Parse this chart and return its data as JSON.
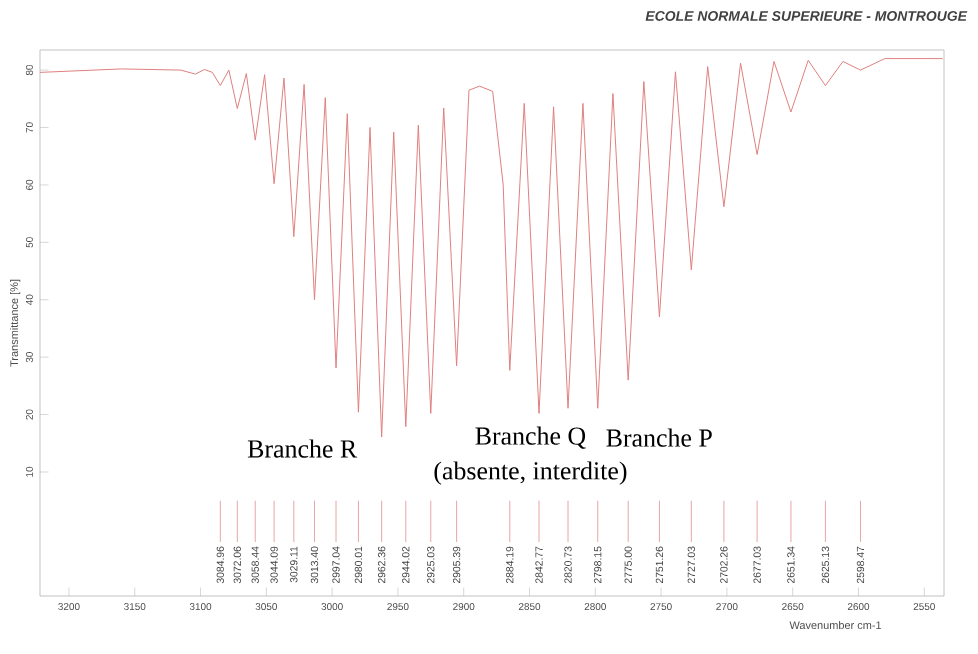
{
  "chart_data": {
    "type": "line",
    "title": "ECOLE NORMALE SUPERIEURE - MONTROUGE",
    "xlabel": "Wavenumber cm-1",
    "ylabel": "Transmittance [%]",
    "color": "#e08080",
    "x": [
      3222,
      3160,
      3115,
      3104,
      3097,
      3091,
      3084.96,
      3078.5,
      3072.06,
      3065.2,
      3058.44,
      3051.3,
      3044.09,
      3036.6,
      3029.11,
      3021.3,
      3013.4,
      3005.2,
      2997.04,
      2988.5,
      2980.01,
      2971.2,
      2962.36,
      2953.2,
      2944.02,
      2934.5,
      2925.03,
      2915.2,
      2905.39,
      2896,
      2888,
      2878,
      2870,
      2865,
      2854,
      2842.77,
      2831.7,
      2820.73,
      2809.4,
      2798.15,
      2786.6,
      2775.0,
      2763.1,
      2751.26,
      2739.1,
      2727.03,
      2714.6,
      2702.26,
      2689.6,
      2677.03,
      2664.2,
      2651.34,
      2638.2,
      2625.13,
      2611.8,
      2598.47,
      2580,
      2536
    ],
    "values": [
      79.6,
      80.2,
      80.0,
      79.3,
      80.1,
      79.6,
      77.3,
      80.0,
      73.3,
      79.4,
      67.8,
      79.2,
      60.2,
      78.6,
      51.0,
      77.5,
      40.0,
      75.2,
      28.1,
      72.4,
      20.4,
      70.0,
      16.1,
      69.2,
      17.9,
      70.4,
      20.2,
      73.4,
      28.5,
      76.5,
      77.2,
      76.3,
      60,
      27.7,
      74.2,
      20.2,
      73.6,
      21.1,
      74.2,
      21.1,
      75.9,
      26.0,
      78.0,
      37.0,
      79.7,
      45.2,
      80.6,
      56.2,
      81.2,
      65.3,
      81.5,
      72.7,
      81.7,
      77.3,
      81.5,
      80.0,
      82.0,
      82.0
    ],
    "xlim": [
      3222,
      2535
    ],
    "ylim": [
      -11.6,
      83.5
    ],
    "xticks": [
      3200,
      3150,
      3100,
      3050,
      3000,
      2950,
      2900,
      2850,
      2800,
      2750,
      2700,
      2650,
      2600,
      2550
    ],
    "yticks": [
      10,
      20,
      30,
      40,
      50,
      60,
      70,
      80
    ],
    "annotations": [
      "Branche R",
      "Branche Q",
      "(absente, interdite)",
      "Branche P",
      {
        "text": "3084.96",
        "x": 3084.96
      },
      {
        "text": "3072.06",
        "x": 3072.06
      },
      {
        "text": "3058.44",
        "x": 3058.44
      },
      {
        "text": "3044.09",
        "x": 3044.09
      },
      {
        "text": "3029.11",
        "x": 3029.11
      },
      {
        "text": "3013.40",
        "x": 3013.4
      },
      {
        "text": "2997.04",
        "x": 2997.04
      },
      {
        "text": "2980.01",
        "x": 2980.01
      },
      {
        "text": "2962.36",
        "x": 2962.36
      },
      {
        "text": "2944.02",
        "x": 2944.02
      },
      {
        "text": "2925.03",
        "x": 2925.03
      },
      {
        "text": "2905.39",
        "x": 2905.39
      },
      {
        "text": "2884.19",
        "x": 2865
      },
      {
        "text": "2842.77",
        "x": 2842.77
      },
      {
        "text": "2820.73",
        "x": 2820.73
      },
      {
        "text": "2798.15",
        "x": 2798.15
      },
      {
        "text": "2775.00",
        "x": 2775.0
      },
      {
        "text": "2751.26",
        "x": 2751.26
      },
      {
        "text": "2727.03",
        "x": 2727.03
      },
      {
        "text": "2702.26",
        "x": 2702.26
      },
      {
        "text": "2677.03",
        "x": 2677.03
      },
      {
        "text": "2651.34",
        "x": 2651.34
      },
      {
        "text": "2625.13",
        "x": 2625.13
      },
      {
        "text": "2598.47",
        "x": 2598.47
      }
    ]
  }
}
